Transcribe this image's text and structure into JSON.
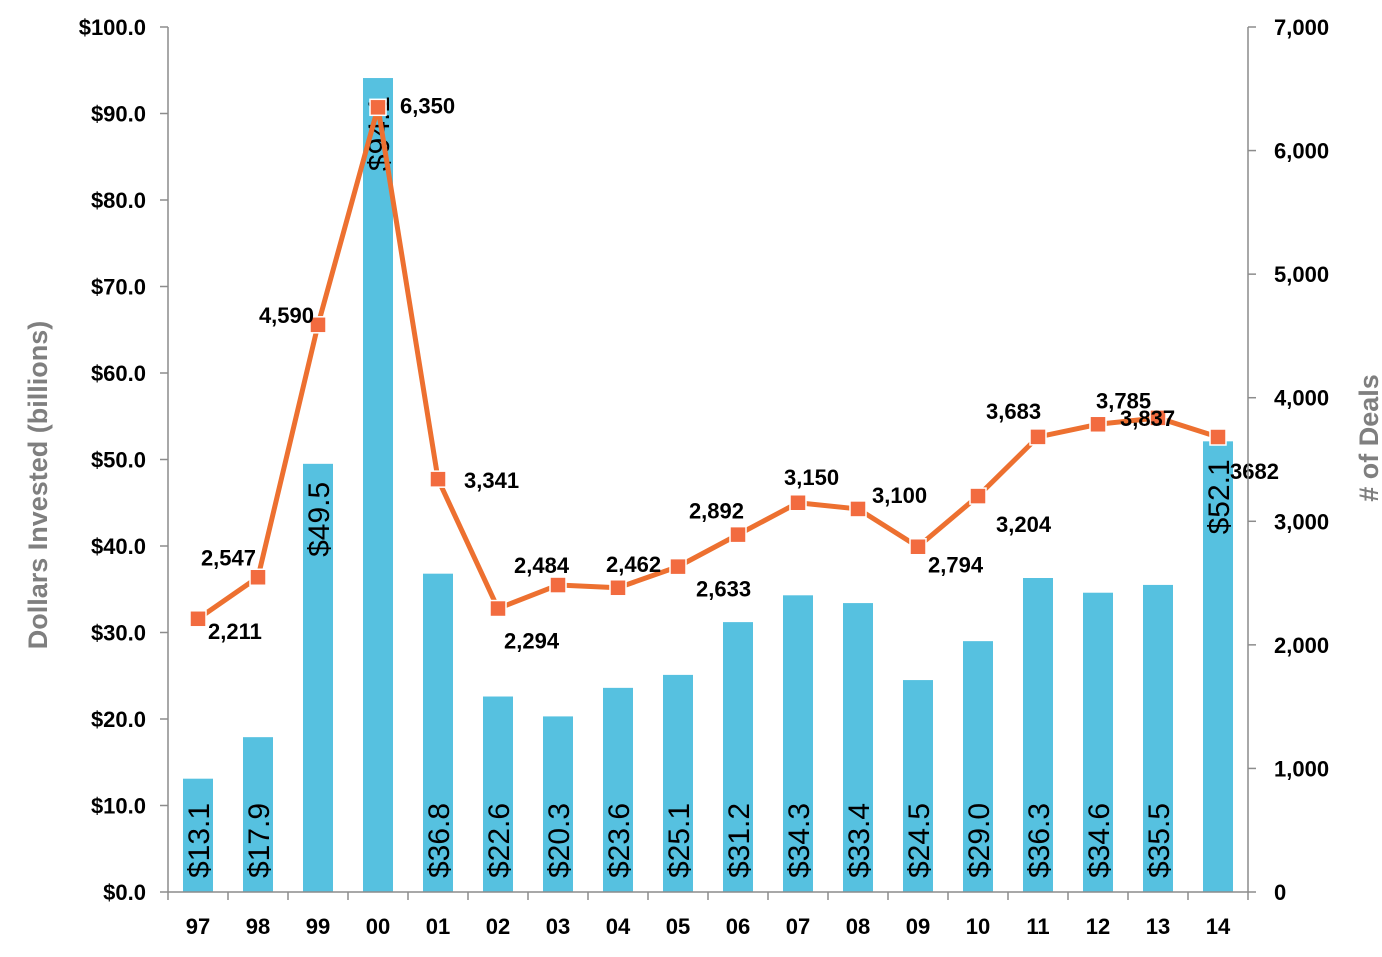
{
  "chart_data": {
    "type": "bar",
    "categories": [
      "97",
      "98",
      "99",
      "00",
      "01",
      "02",
      "03",
      "04",
      "05",
      "06",
      "07",
      "08",
      "09",
      "10",
      "11",
      "12",
      "13",
      "14"
    ],
    "series": [
      {
        "type": "bar",
        "axis": "left",
        "color": "#56c1e0",
        "values": [
          13.1,
          17.9,
          49.5,
          94.1,
          36.8,
          22.6,
          20.3,
          23.6,
          25.1,
          31.2,
          34.3,
          33.4,
          24.5,
          29.0,
          36.3,
          34.6,
          35.5,
          52.1
        ],
        "labels": [
          "$13.1",
          "$17.9",
          "$49.5",
          "$94.1",
          "$36.8",
          "$22.6",
          "$20.3",
          "$23.6",
          "$25.1",
          "$31.2",
          "$34.3",
          "$33.4",
          "$24.5",
          "$29.0",
          "$36.3",
          "$34.6",
          "$35.5",
          "$52.1"
        ]
      },
      {
        "type": "line",
        "axis": "right",
        "color": "#ed7030",
        "marker_color": "#f26b3f",
        "values": [
          2211,
          2547,
          4590,
          6350,
          3341,
          2294,
          2484,
          2462,
          2633,
          2892,
          3150,
          3100,
          2794,
          3204,
          3683,
          3785,
          3837,
          3682
        ],
        "labels": [
          "2,211",
          "2,547",
          "4,590",
          "6,350",
          "3,341",
          "2,294",
          "2,484",
          "2,462",
          "2,633",
          "2,892",
          "3,150",
          "3,100",
          "2,794",
          "3,204",
          "3,683",
          "3,785",
          "3,837",
          "3682"
        ]
      }
    ],
    "ylabel": "Dollars Invested (billions)",
    "ylabel_right": "# of Deals",
    "ylim": [
      0,
      100
    ],
    "ylim_right": [
      0,
      7000
    ],
    "yticks": [
      "$0.0",
      "$10.0",
      "$20.0",
      "$30.0",
      "$40.0",
      "$50.0",
      "$60.0",
      "$70.0",
      "$80.0",
      "$90.0",
      "$100.0"
    ],
    "yticks_right": [
      "0",
      "1,000",
      "2,000",
      "3,000",
      "4,000",
      "5,000",
      "6,000",
      "7,000"
    ],
    "grid": false,
    "legend": "none"
  }
}
